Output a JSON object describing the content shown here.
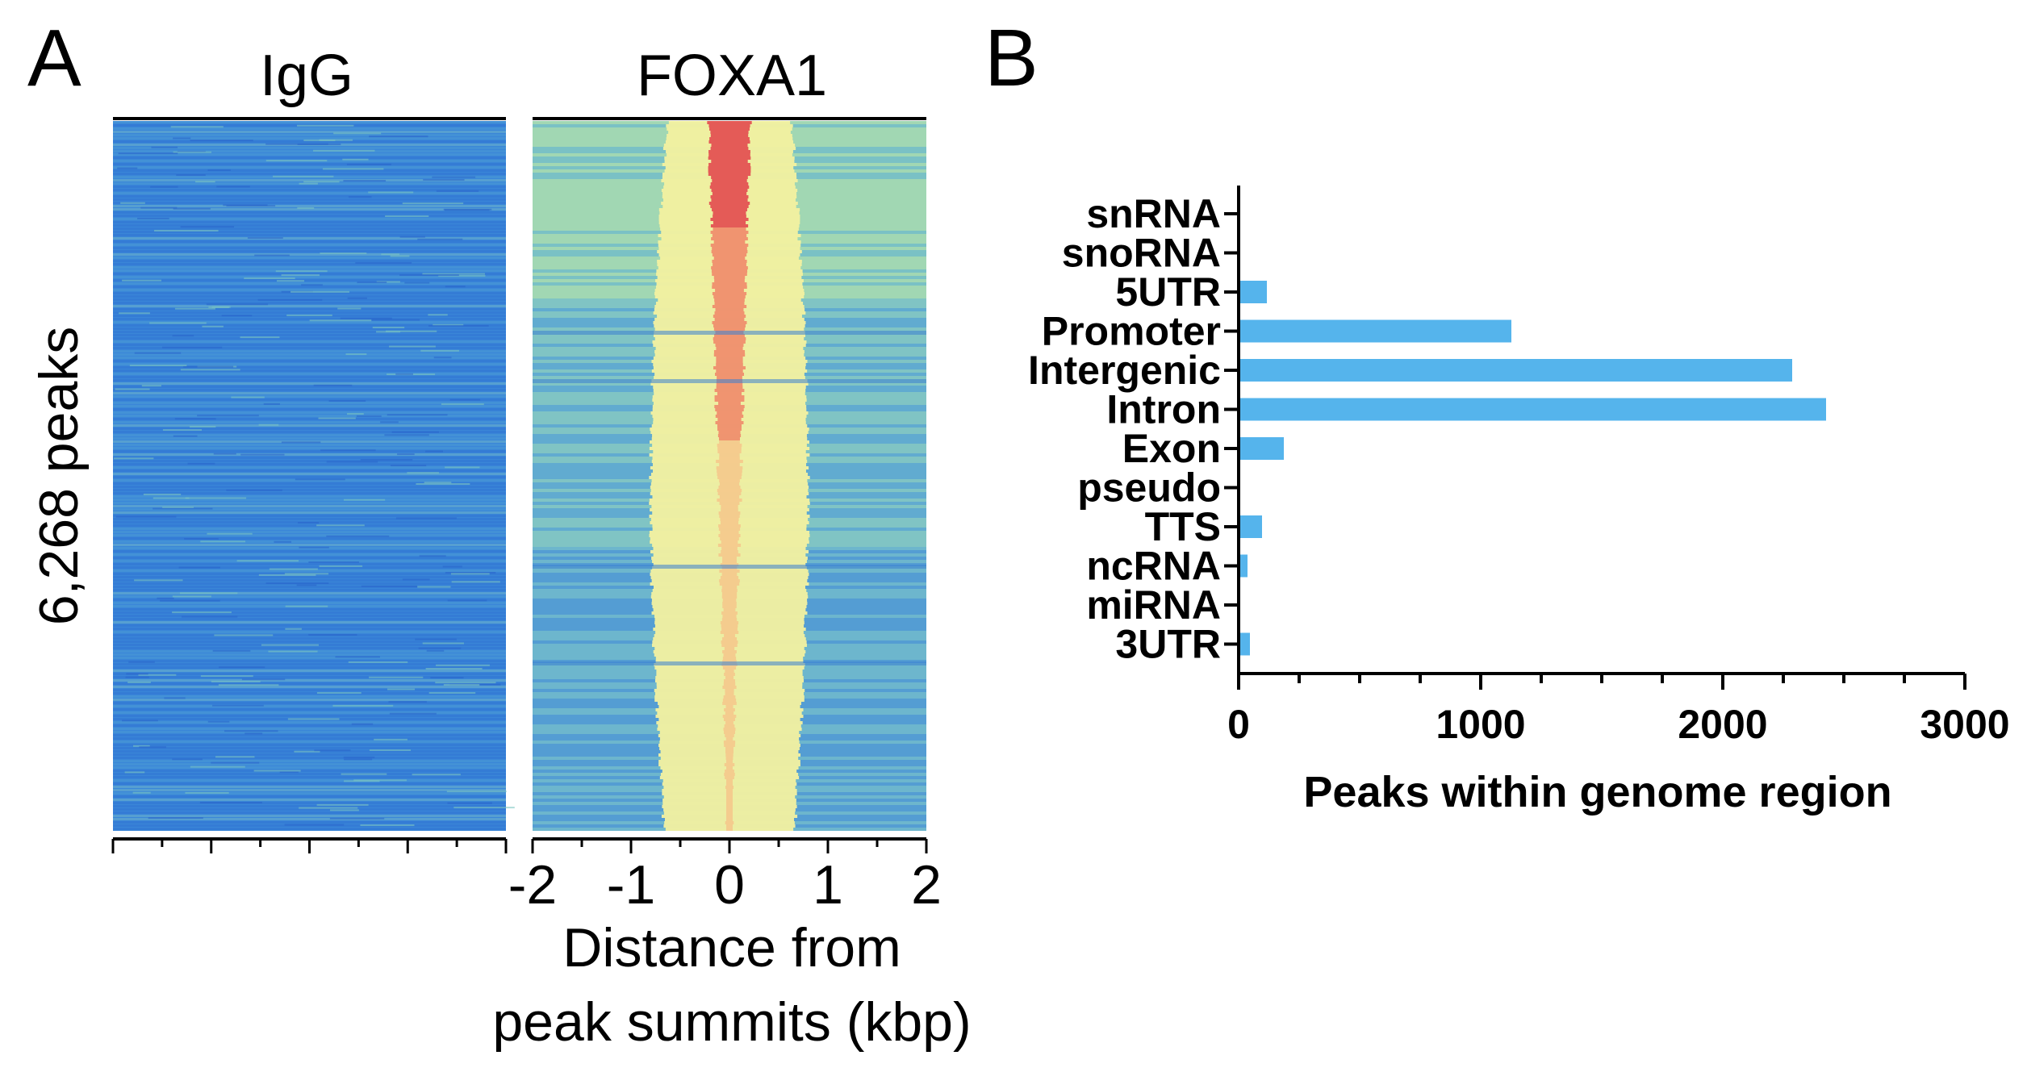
{
  "panel_a": {
    "letter": "A",
    "ylabel": "6,268 peaks",
    "xlabel_line1": "Distance from",
    "xlabel_line2": "peak summits (kbp)"
  },
  "panel_b": {
    "letter": "B"
  },
  "chart_data": [
    {
      "type": "heatmap",
      "panel": "A",
      "title": "IgG",
      "rows": 6268,
      "x_range_kbp": [
        -2,
        2
      ],
      "pattern": "uniformly low signal",
      "colormap": [
        "#2f6fd6",
        "#4a9ad8",
        "#8fcfb8",
        "#f4f3a0",
        "#f2b36a",
        "#d9304a"
      ]
    },
    {
      "type": "heatmap",
      "panel": "A",
      "title": "FOXA1",
      "rows": 6268,
      "x_range_kbp": [
        -2,
        2
      ],
      "pattern": "strong enrichment centered at 0 kbp, decreasing down the rows",
      "colormap": [
        "#2f6fd6",
        "#4a9ad8",
        "#8fcfb8",
        "#f4f3a0",
        "#f2b36a",
        "#d9304a"
      ],
      "xticks": [
        "-2",
        "-1",
        "0",
        "1",
        "2"
      ]
    },
    {
      "type": "bar",
      "panel": "B",
      "orientation": "horizontal",
      "categories": [
        "snRNA",
        "snoRNA",
        "5UTR",
        "Promoter",
        "Intergenic",
        "Intron",
        "Exon",
        "pseudo",
        "TTS",
        "ncRNA",
        "miRNA",
        "3UTR"
      ],
      "values": [
        0,
        0,
        110,
        1120,
        2280,
        2420,
        180,
        0,
        90,
        30,
        0,
        40
      ],
      "xlabel": "Peaks within genome region",
      "xlim": [
        0,
        3000
      ],
      "xticks": [
        "0",
        "1000",
        "2000",
        "3000"
      ],
      "bar_color": "#55b4ec"
    }
  ]
}
